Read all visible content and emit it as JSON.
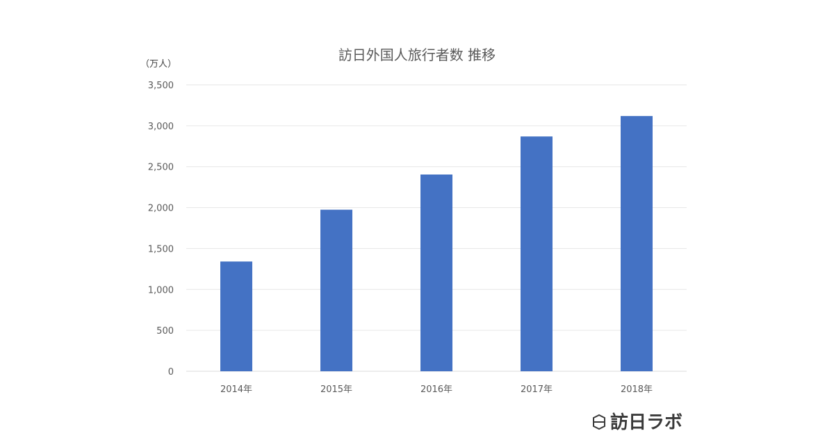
{
  "chart_data": {
    "type": "bar",
    "title": "訪日外国人旅行者数 推移",
    "unit_label": "（万人）",
    "categories": [
      "2014年",
      "2015年",
      "2016年",
      "2017年",
      "2018年"
    ],
    "values": [
      1341,
      1974,
      2404,
      2869,
      3119
    ],
    "ylim": [
      0,
      3500
    ],
    "yticks": [
      0,
      500,
      1000,
      1500,
      2000,
      2500,
      3000,
      3500
    ],
    "ytick_labels": [
      "0",
      "500",
      "1,000",
      "1,500",
      "2,000",
      "2,500",
      "3,000",
      "3,500"
    ],
    "grid": true,
    "bar_color": "#4472C4"
  },
  "logo": {
    "text": "訪日ラボ",
    "icon": "badge-icon"
  }
}
